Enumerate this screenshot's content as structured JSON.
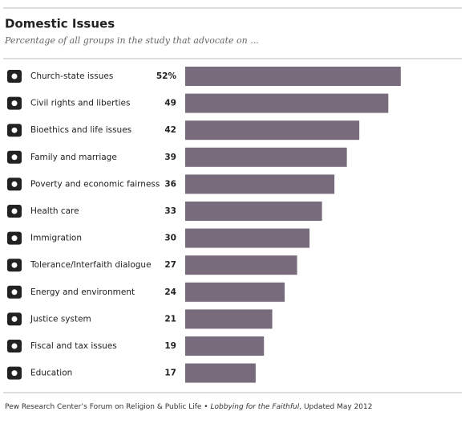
{
  "chart_data": {
    "type": "barh",
    "title": "Domestic Issues",
    "subtitle": "Percentage of all groups in the study that advocate on ...",
    "categories": [
      "Church-state issues",
      "Civil rights and liberties",
      "Bioethics and life issues",
      "Family and marriage",
      "Poverty and economic fairness",
      "Health care",
      "Immigration",
      "Tolerance/Interfaith dialogue",
      "Energy and environment",
      "Justice system",
      "Fiscal and tax issues",
      "Education"
    ],
    "values": [
      52,
      49,
      42,
      39,
      36,
      33,
      30,
      27,
      24,
      21,
      19,
      17
    ],
    "value_labels": [
      "52%",
      "49",
      "42",
      "39",
      "36",
      "33",
      "30",
      "27",
      "24",
      "21",
      "19",
      "17"
    ],
    "color": "#776b7c",
    "source": [
      "Pew Research Center’s Forum on Religion & Public Life •",
      "Lobbying for the Faithful",
      ", Updated May 2012"
    ]
  }
}
